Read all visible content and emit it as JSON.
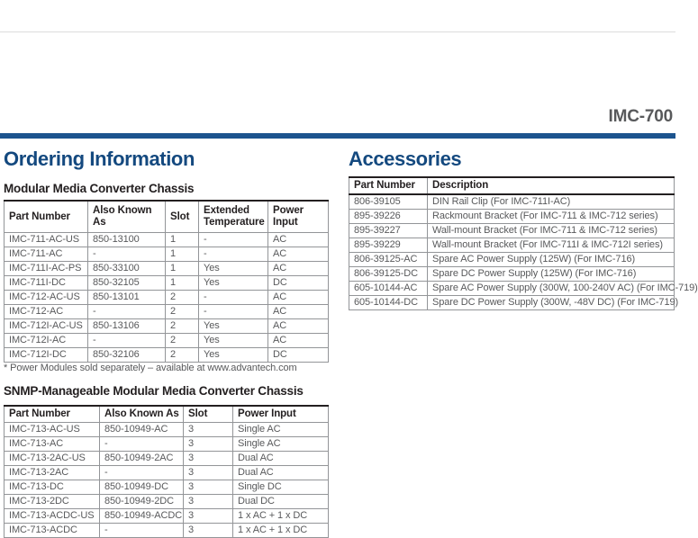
{
  "header": {
    "model": "IMC-700"
  },
  "colors": {
    "brand_blue_heading": "#14497f",
    "brand_blue_bar": "#1c548e",
    "body_text_gray": "#58595b",
    "table_border_gray": "#939598",
    "header_text_black": "#231f20"
  },
  "ordering": {
    "title": "Ordering Information",
    "footnote": "* Power Modules sold separately – available at www.advantech.com",
    "modular_table": {
      "caption": "Modular Media Converter Chassis",
      "headers": [
        "Part Number",
        "Also Known As",
        "Slot",
        "Extended Temperature",
        "Power Input"
      ],
      "rows": [
        [
          "IMC-711-AC-US",
          "850-13100",
          "1",
          "-",
          "AC"
        ],
        [
          "IMC-711-AC",
          "-",
          "1",
          "-",
          "AC"
        ],
        [
          "IMC-711I-AC-PS",
          "850-33100",
          "1",
          "Yes",
          "AC"
        ],
        [
          "IMC-711I-DC",
          "850-32105",
          "1",
          "Yes",
          "DC"
        ],
        [
          "IMC-712-AC-US",
          "850-13101",
          "2",
          "-",
          "AC"
        ],
        [
          "IMC-712-AC",
          "-",
          "2",
          "-",
          "AC"
        ],
        [
          "IMC-712I-AC-US",
          "850-13106",
          "2",
          "Yes",
          "AC"
        ],
        [
          "IMC-712I-AC",
          "-",
          "2",
          "Yes",
          "AC"
        ],
        [
          "IMC-712I-DC",
          "850-32106",
          "2",
          "Yes",
          "DC"
        ]
      ]
    },
    "snmp_table": {
      "caption": "SNMP-Manageable Modular Media Converter Chassis",
      "headers": [
        "Part Number",
        "Also Known As",
        "Slot",
        "Power Input"
      ],
      "rows": [
        [
          "IMC-713-AC-US",
          "850-10949-AC",
          "3",
          "Single AC"
        ],
        [
          "IMC-713-AC",
          "-",
          "3",
          "Single AC"
        ],
        [
          "IMC-713-2AC-US",
          "850-10949-2AC",
          "3",
          "Dual AC"
        ],
        [
          "IMC-713-2AC",
          "-",
          "3",
          "Dual AC"
        ],
        [
          "IMC-713-DC",
          "850-10949-DC",
          "3",
          "Single DC"
        ],
        [
          "IMC-713-2DC",
          "850-10949-2DC",
          "3",
          "Dual DC"
        ],
        [
          "IMC-713-ACDC-US",
          "850-10949-ACDC",
          "3",
          "1 x AC + 1 x DC"
        ],
        [
          "IMC-713-ACDC",
          "-",
          "3",
          "1 x AC + 1 x DC"
        ]
      ]
    }
  },
  "accessories": {
    "title": "Accessories",
    "table": {
      "headers": [
        "Part Number",
        "Description"
      ],
      "rows": [
        [
          "806-39105",
          "DIN Rail Clip (For IMC-711I-AC)"
        ],
        [
          "895-39226",
          "Rackmount Bracket (For IMC-711 & IMC-712 series)"
        ],
        [
          "895-39227",
          "Wall-mount Bracket (For IMC-711 & IMC-712 series)"
        ],
        [
          "895-39229",
          "Wall-mount Bracket (For IMC-711I & IMC-712I series)"
        ],
        [
          "806-39125-AC",
          "Spare AC Power Supply (125W) (For IMC-716)"
        ],
        [
          "806-39125-DC",
          "Spare DC Power Supply (125W) (For IMC-716)"
        ],
        [
          "605-10144-AC",
          "Spare AC Power Supply (300W, 100-240V AC) (For IMC-719)"
        ],
        [
          "605-10144-DC",
          "Spare DC Power Supply (300W, -48V DC) (For IMC-719)"
        ]
      ]
    }
  }
}
